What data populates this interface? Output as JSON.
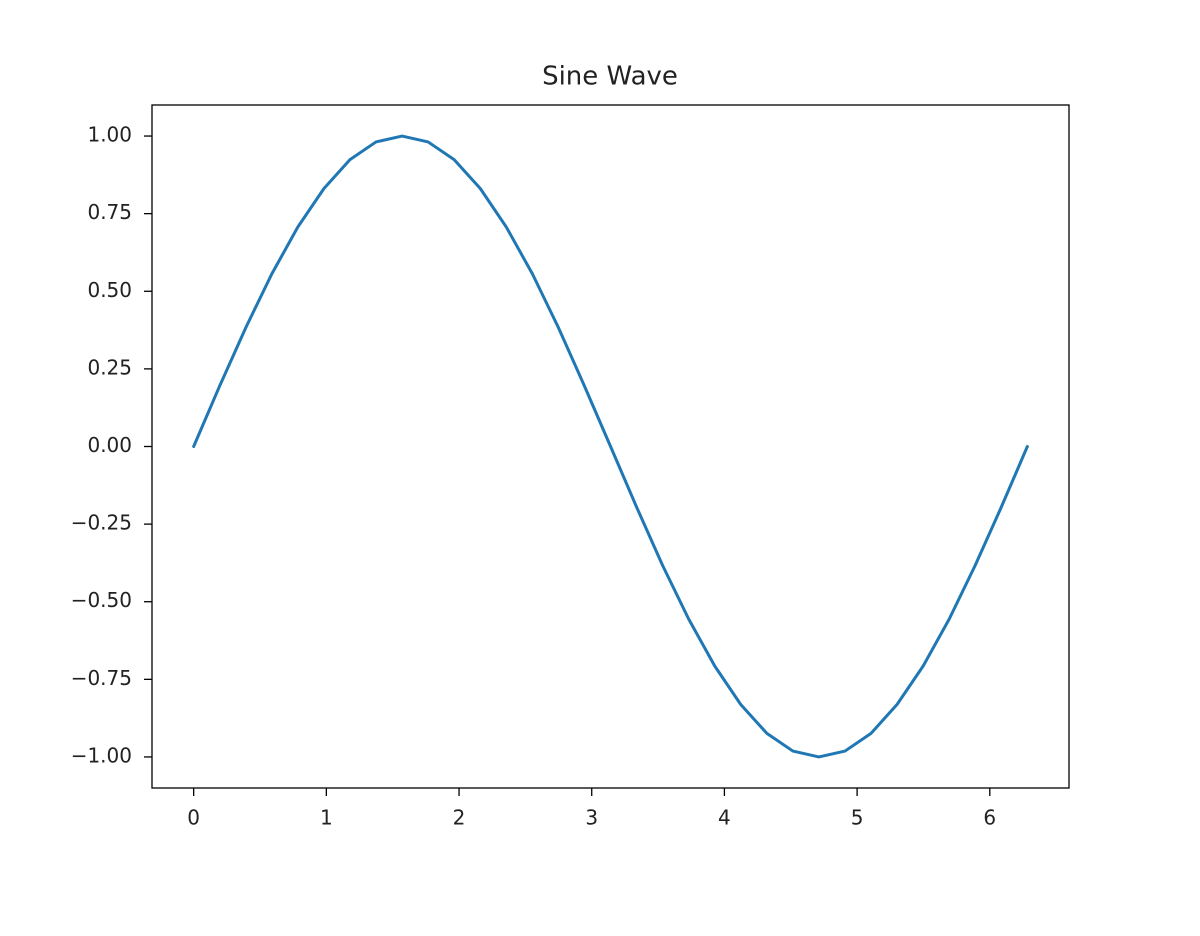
{
  "chart_data": {
    "type": "line",
    "title": "Sine Wave",
    "x": [
      0,
      0.196,
      0.393,
      0.589,
      0.785,
      0.982,
      1.178,
      1.374,
      1.571,
      1.767,
      1.963,
      2.16,
      2.356,
      2.553,
      2.749,
      2.945,
      3.142,
      3.338,
      3.534,
      3.731,
      3.927,
      4.123,
      4.32,
      4.516,
      4.712,
      4.909,
      5.105,
      5.301,
      5.498,
      5.694,
      5.89,
      6.087,
      6.283
    ],
    "series": [
      {
        "color": "#1f77b4",
        "values": [
          0,
          0.195,
          0.383,
          0.556,
          0.707,
          0.831,
          0.924,
          0.981,
          1.0,
          0.981,
          0.924,
          0.831,
          0.707,
          0.556,
          0.383,
          0.195,
          0,
          -0.195,
          -0.383,
          -0.556,
          -0.707,
          -0.831,
          -0.924,
          -0.981,
          -1.0,
          -0.981,
          -0.924,
          -0.831,
          -0.707,
          -0.556,
          -0.383,
          -0.195,
          0
        ]
      }
    ],
    "xlim": [
      -0.314,
      6.597
    ],
    "ylim": [
      -1.1,
      1.1
    ],
    "xticks": [
      0,
      1,
      2,
      3,
      4,
      5,
      6
    ],
    "yticks": [
      {
        "value": -1,
        "label": "−1.00"
      },
      {
        "value": -0.75,
        "label": "−0.75"
      },
      {
        "value": -0.5,
        "label": "−0.50"
      },
      {
        "value": -0.25,
        "label": "−0.25"
      },
      {
        "value": 0,
        "label": "0.00"
      },
      {
        "value": 0.25,
        "label": "0.25"
      },
      {
        "value": 0.5,
        "label": "0.50"
      },
      {
        "value": 0.75,
        "label": "0.75"
      },
      {
        "value": 1,
        "label": "1.00"
      }
    ],
    "grid": false
  }
}
